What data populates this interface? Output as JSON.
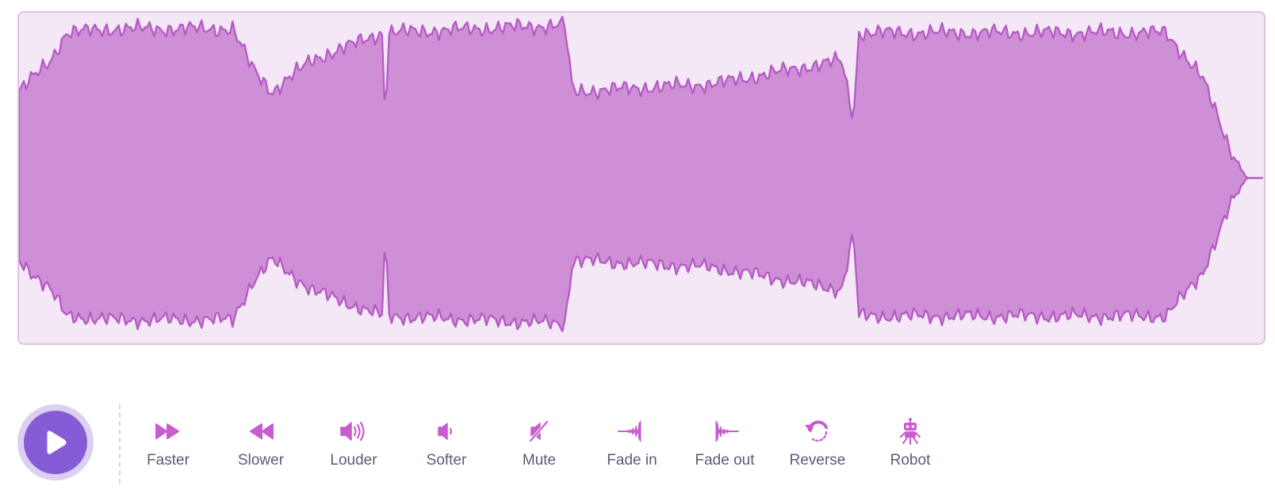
{
  "colors": {
    "waveform_fill": "#cf8fd6",
    "waveform_stroke": "#b55cc4",
    "waveform_bg": "#f4e8f6",
    "waveform_border": "#dcc3e0",
    "play_button": "#855cd6",
    "play_ring": "#dcd0f2",
    "effect_icon": "#c95ccf",
    "label_text": "#575e75"
  },
  "player": {
    "play_icon": "play-icon"
  },
  "effects": [
    {
      "id": "faster",
      "label": "Faster",
      "icon": "fast-forward-icon"
    },
    {
      "id": "slower",
      "label": "Slower",
      "icon": "rewind-icon"
    },
    {
      "id": "louder",
      "label": "Louder",
      "icon": "speaker-loud-icon"
    },
    {
      "id": "softer",
      "label": "Softer",
      "icon": "speaker-soft-icon"
    },
    {
      "id": "mute",
      "label": "Mute",
      "icon": "speaker-mute-icon"
    },
    {
      "id": "fade-in",
      "label": "Fade in",
      "icon": "fade-in-icon"
    },
    {
      "id": "fade-out",
      "label": "Fade out",
      "icon": "fade-out-icon"
    },
    {
      "id": "reverse",
      "label": "Reverse",
      "icon": "reverse-icon"
    },
    {
      "id": "robot",
      "label": "Robot",
      "icon": "robot-icon"
    }
  ]
}
